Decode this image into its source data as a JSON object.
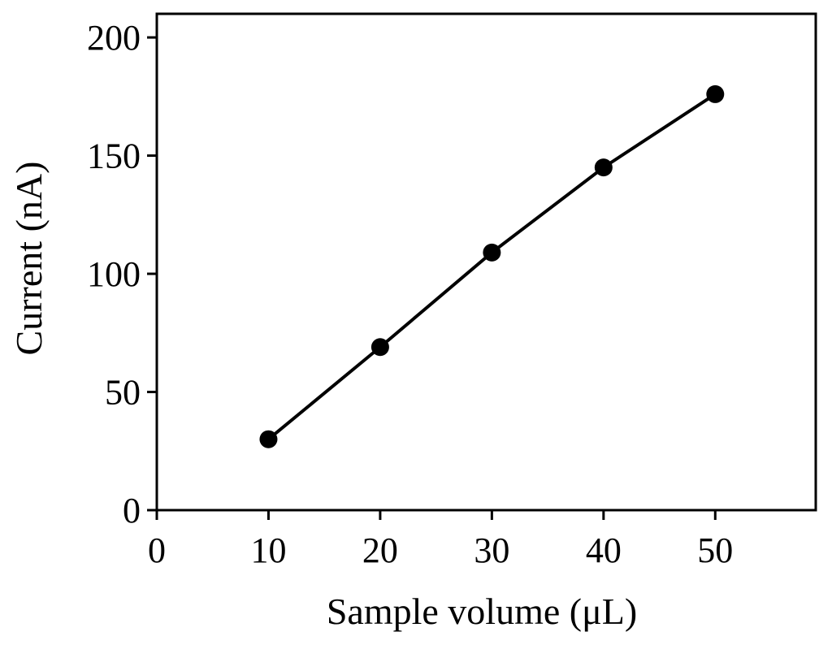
{
  "chart_data": {
    "type": "line",
    "title": "",
    "xlabel": "Sample volume (μL)",
    "ylabel": "Current (nA)",
    "xlim": [
      0,
      59
    ],
    "ylim": [
      0,
      210
    ],
    "xticks": [
      0,
      10,
      20,
      30,
      40,
      50
    ],
    "yticks": [
      0,
      50,
      100,
      150,
      200
    ],
    "grid": false,
    "legend": "none",
    "colors": {
      "line": "#000000",
      "marker": "#000000",
      "frame": "#000000"
    },
    "series": [
      {
        "x": [
          10,
          20,
          30,
          40,
          50
        ],
        "y": [
          30,
          69,
          109,
          145,
          176
        ]
      }
    ]
  }
}
